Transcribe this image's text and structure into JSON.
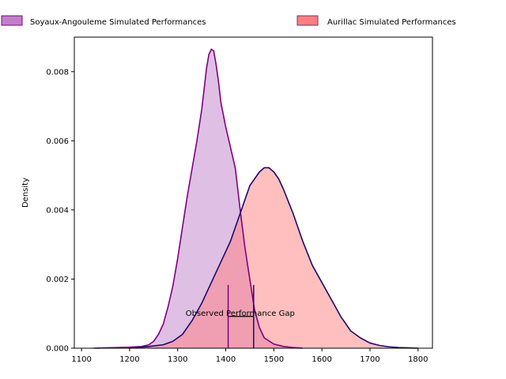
{
  "chart_data": {
    "type": "area",
    "title": "",
    "xlabel": "",
    "ylabel": "Density",
    "xlim": [
      1085,
      1830
    ],
    "ylim": [
      0,
      0.009
    ],
    "xticks": [
      1100,
      1200,
      1300,
      1400,
      1500,
      1600,
      1700,
      1800
    ],
    "xtick_labels": [
      "1100",
      "1200",
      "1300",
      "1400",
      "1500",
      "1600",
      "1700",
      "1800"
    ],
    "yticks": [
      0,
      0.002,
      0.004,
      0.006,
      0.008
    ],
    "ytick_labels": [
      "0.000",
      "0.002",
      "0.004",
      "0.006",
      "0.008"
    ],
    "grid": false,
    "legend_position": "top",
    "series": [
      {
        "name": "Soyaux-Angouleme Simulated Performances",
        "fill": "#c080c8",
        "fill_opacity": 0.5,
        "line": "#800080",
        "x": [
          1125,
          1150,
          1175,
          1200,
          1225,
          1240,
          1250,
          1260,
          1270,
          1280,
          1290,
          1300,
          1310,
          1320,
          1330,
          1340,
          1350,
          1355,
          1360,
          1365,
          1370,
          1375,
          1380,
          1385,
          1390,
          1400,
          1410,
          1420,
          1430,
          1440,
          1450,
          1460,
          1470,
          1480,
          1500,
          1520,
          1540,
          1560
        ],
        "y": [
          0,
          1e-05,
          2e-05,
          3e-05,
          5e-05,
          0.0001,
          0.0002,
          0.0004,
          0.0007,
          0.0012,
          0.0018,
          0.0026,
          0.0035,
          0.0044,
          0.0052,
          0.006,
          0.0069,
          0.0075,
          0.0081,
          0.0085,
          0.00865,
          0.0086,
          0.0082,
          0.0077,
          0.0071,
          0.0064,
          0.0058,
          0.0052,
          0.004,
          0.0029,
          0.002,
          0.0011,
          0.0006,
          0.0003,
          0.00012,
          5e-05,
          2e-05,
          0
        ]
      },
      {
        "name": "Aurillac Simulated Performances",
        "fill": "#ff7f7f",
        "fill_opacity": 0.5,
        "line": "#1a0a6e",
        "x": [
          1200,
          1240,
          1270,
          1290,
          1310,
          1330,
          1350,
          1370,
          1390,
          1410,
          1430,
          1450,
          1470,
          1480,
          1490,
          1500,
          1510,
          1520,
          1540,
          1560,
          1580,
          1600,
          1620,
          1640,
          1660,
          1680,
          1700,
          1720,
          1740,
          1760,
          1780,
          1800
        ],
        "y": [
          0,
          5e-05,
          0.0001,
          0.0002,
          0.0004,
          0.0008,
          0.0013,
          0.0019,
          0.0025,
          0.0031,
          0.0039,
          0.0047,
          0.0051,
          0.00522,
          0.00522,
          0.0051,
          0.0049,
          0.0046,
          0.0039,
          0.0031,
          0.0024,
          0.0019,
          0.0014,
          0.0009,
          0.0005,
          0.0003,
          0.00015,
          8e-05,
          4e-05,
          2e-05,
          1e-05,
          0
        ]
      }
    ],
    "annotation": {
      "text": "Observed Performance Gap",
      "x": 1430,
      "y": 0.001,
      "vlines": [
        {
          "x": 1405,
          "y": 0.00183,
          "color": "#800080"
        },
        {
          "x": 1458,
          "y": 0.00183,
          "color": "#1a0a6e"
        }
      ],
      "bracket": {
        "x1": 1405,
        "x2": 1458,
        "y": 0.00092,
        "color": "#000000"
      }
    }
  }
}
